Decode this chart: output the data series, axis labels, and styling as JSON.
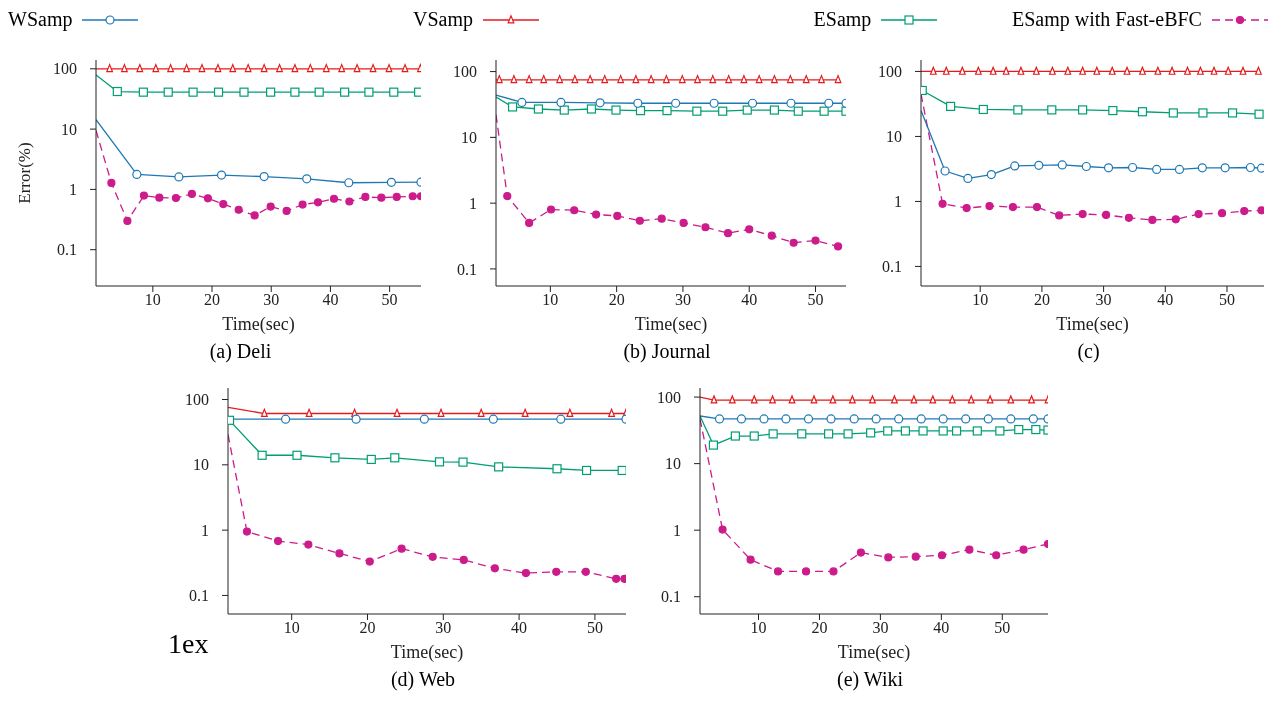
{
  "chart_data": [
    {
      "type": "line",
      "title": "(a) Deli",
      "xlabel": "Time(sec)",
      "ylabel": "Error(%)",
      "log": true,
      "legend": "top",
      "xlim": [
        0.4,
        55.3
      ],
      "xticks": [
        10,
        20,
        30,
        40,
        50
      ],
      "ylim": [
        0.025,
        140
      ],
      "yticks": [
        0.1,
        1,
        10,
        100
      ],
      "series": [
        {
          "name": "WSamp",
          "color": "#1f78b4",
          "marker": "circle",
          "line_style": "solid",
          "x": [
            0.4,
            7.3,
            14.4,
            21.6,
            28.8,
            36.0,
            43.1,
            50.3,
            55.3
          ],
          "values": [
            14.4,
            1.77,
            1.61,
            1.73,
            1.63,
            1.5,
            1.29,
            1.31,
            1.32
          ]
        },
        {
          "name": "VSamp",
          "color": "#e41a1c",
          "marker": "triangle",
          "line_style": "solid",
          "x": [
            0.4,
            2.7,
            5.2,
            7.8,
            10.5,
            13.0,
            15.7,
            18.3,
            21.0,
            23.5,
            26.1,
            28.8,
            31.4,
            34.0,
            36.6,
            39.3,
            41.9,
            44.5,
            47.2,
            49.9,
            52.6,
            55.2
          ],
          "values": [
            100,
            100,
            100,
            100,
            100,
            100,
            100,
            100,
            100,
            100,
            100,
            100,
            100,
            100,
            100,
            100,
            100,
            100,
            100,
            100,
            100,
            100
          ]
        },
        {
          "name": "ESamp",
          "color": "#009e73",
          "marker": "square",
          "line_style": "solid",
          "x": [
            0.4,
            4.0,
            8.4,
            12.6,
            16.8,
            21.1,
            25.4,
            29.9,
            34.0,
            38.1,
            42.4,
            46.5,
            50.7,
            54.9
          ],
          "values": [
            79,
            42,
            41,
            41,
            41,
            41,
            41,
            41,
            41,
            41,
            41,
            41,
            41,
            41
          ]
        },
        {
          "name": "ESamp with Fast-eBFC",
          "color": "#cc1b8b",
          "marker": "circle",
          "line_style": "dashed",
          "x": [
            0.4,
            3.0,
            5.7,
            8.5,
            11.1,
            13.9,
            16.6,
            19.3,
            21.9,
            24.5,
            27.2,
            29.9,
            32.6,
            35.3,
            37.9,
            40.6,
            43.2,
            45.9,
            48.6,
            51.2,
            53.9,
            55.3
          ],
          "values": [
            9.5,
            1.28,
            0.3,
            0.79,
            0.73,
            0.72,
            0.84,
            0.71,
            0.57,
            0.46,
            0.37,
            0.52,
            0.44,
            0.56,
            0.61,
            0.7,
            0.63,
            0.75,
            0.73,
            0.75,
            0.77,
            0.77
          ]
        }
      ]
    },
    {
      "type": "line",
      "title": "(b) Journal",
      "xlabel": "Time(sec)",
      "log": true,
      "xlim": [
        1.8,
        54.6
      ],
      "xticks": [
        10,
        20,
        30,
        40,
        50
      ],
      "ylim": [
        0.055,
        150
      ],
      "yticks": [
        0.1,
        1,
        10,
        100
      ],
      "series": [
        {
          "color": "#1f78b4",
          "marker": "circle",
          "line_style": "solid",
          "x": [
            1.8,
            5.7,
            11.6,
            17.5,
            23.2,
            28.9,
            34.7,
            40.5,
            46.3,
            52.0,
            54.6
          ],
          "values": [
            44,
            34,
            34,
            33.5,
            33,
            33,
            33,
            33,
            33,
            33,
            33
          ]
        },
        {
          "color": "#e41a1c",
          "marker": "triangle",
          "line_style": "solid",
          "x": [
            1.8,
            2.3,
            4.5,
            6.8,
            9.0,
            11.4,
            13.7,
            16.0,
            18.2,
            20.6,
            22.9,
            25.2,
            27.5,
            29.9,
            32.2,
            34.5,
            36.9,
            39.2,
            41.5,
            43.8,
            46.2,
            48.6,
            50.9,
            53.4
          ],
          "values": [
            75,
            75,
            75,
            75,
            75,
            75,
            75,
            75,
            75,
            75,
            75,
            75,
            75,
            75,
            75,
            75,
            75,
            75,
            75,
            75,
            75,
            75,
            75,
            75
          ]
        },
        {
          "color": "#009e73",
          "marker": "square",
          "line_style": "solid",
          "x": [
            1.8,
            4.3,
            8.2,
            12.1,
            16.2,
            19.9,
            23.6,
            27.6,
            32.1,
            36.0,
            39.7,
            43.8,
            47.4,
            51.3,
            54.6
          ],
          "values": [
            41,
            29,
            27,
            26,
            27,
            26,
            25.5,
            25.5,
            25,
            25,
            26,
            26,
            25,
            25,
            25
          ]
        },
        {
          "color": "#cc1b8b",
          "marker": "circle",
          "line_style": "dashed",
          "x": [
            1.8,
            3.5,
            6.8,
            10.1,
            13.6,
            16.9,
            20.1,
            23.5,
            26.8,
            30.1,
            33.4,
            36.8,
            40.0,
            43.4,
            46.7,
            50.0,
            53.4
          ],
          "values": [
            22,
            1.28,
            0.5,
            0.8,
            0.78,
            0.67,
            0.64,
            0.54,
            0.58,
            0.5,
            0.43,
            0.35,
            0.4,
            0.32,
            0.25,
            0.27,
            0.22
          ]
        }
      ]
    },
    {
      "type": "line",
      "title": "(c)",
      "xlabel": "Time(sec)",
      "log": true,
      "xlim": [
        0.4,
        56
      ],
      "xticks": [
        10,
        20,
        30,
        40,
        50
      ],
      "ylim": [
        0.05,
        150
      ],
      "yticks": [
        0.1,
        1,
        10,
        100
      ],
      "series": [
        {
          "color": "#1f78b4",
          "marker": "circle",
          "line_style": "solid",
          "x": [
            0.4,
            4.3,
            8.0,
            11.8,
            15.6,
            19.5,
            23.3,
            27.2,
            30.8,
            34.7,
            38.6,
            42.3,
            46.0,
            49.7,
            53.8,
            55.6
          ],
          "values": [
            25,
            2.94,
            2.26,
            2.59,
            3.52,
            3.6,
            3.65,
            3.45,
            3.29,
            3.33,
            3.11,
            3.11,
            3.29,
            3.29,
            3.33,
            3.25
          ]
        },
        {
          "color": "#e41a1c",
          "marker": "triangle",
          "line_style": "solid",
          "x": [
            0.4,
            2.4,
            4.5,
            7.1,
            9.7,
            12.1,
            14.2,
            16.6,
            19.1,
            21.7,
            24.2,
            26.6,
            28.9,
            31.4,
            33.8,
            36.3,
            38.8,
            41.1,
            43.6,
            45.7,
            47.9,
            50.2,
            52.6,
            55.1
          ],
          "values": [
            100,
            100,
            100,
            100,
            100,
            100,
            100,
            100,
            100,
            100,
            100,
            100,
            100,
            100,
            100,
            100,
            100,
            100,
            100,
            100,
            100,
            100,
            100,
            100
          ]
        },
        {
          "color": "#009e73",
          "marker": "square",
          "line_style": "solid",
          "x": [
            0.6,
            5.2,
            10.5,
            16.1,
            21.6,
            26.6,
            31.5,
            36.3,
            41.3,
            46.1,
            50.9,
            55.2
          ],
          "values": [
            51,
            29,
            26,
            25.6,
            25.6,
            25.6,
            25,
            24,
            23,
            23,
            23,
            22
          ]
        },
        {
          "color": "#cc1b8b",
          "marker": "circle",
          "line_style": "dashed",
          "x": [
            0.4,
            3.9,
            7.8,
            11.5,
            15.3,
            19.2,
            22.8,
            26.6,
            30.4,
            34.1,
            37.9,
            41.7,
            45.4,
            49.2,
            52.8,
            55.6
          ],
          "values": [
            45,
            0.92,
            0.79,
            0.85,
            0.82,
            0.82,
            0.61,
            0.64,
            0.62,
            0.56,
            0.52,
            0.53,
            0.64,
            0.66,
            0.71,
            0.73
          ]
        }
      ]
    },
    {
      "type": "line",
      "title": "(d) Web",
      "xlabel": "Time(sec)",
      "annotations": [
        "1ex"
      ],
      "log": true,
      "xlim": [
        1.6,
        54.1
      ],
      "xticks": [
        10,
        20,
        30,
        40,
        50
      ],
      "ylim": [
        0.052,
        150
      ],
      "yticks": [
        0.1,
        1,
        10,
        100
      ],
      "series": [
        {
          "color": "#1f78b4",
          "marker": "circle",
          "line_style": "solid",
          "x": [
            1.6,
            9.2,
            18.5,
            27.5,
            36.6,
            45.5,
            54.1
          ],
          "values": [
            50,
            50,
            50,
            50,
            50,
            50,
            50
          ]
        },
        {
          "color": "#e41a1c",
          "marker": "triangle",
          "line_style": "solid",
          "x": [
            1.6,
            6.4,
            12.3,
            18.3,
            23.9,
            29.7,
            35.0,
            40.8,
            46.7,
            52.2,
            54.1
          ],
          "values": [
            76,
            61,
            61,
            61,
            61,
            61,
            61,
            61,
            61,
            61,
            61
          ]
        },
        {
          "color": "#009e73",
          "marker": "square",
          "line_style": "solid",
          "x": [
            1.8,
            6.1,
            10.7,
            15.7,
            20.5,
            23.6,
            29.5,
            32.6,
            37.3,
            45.0,
            48.9,
            53.6
          ],
          "values": [
            48,
            14,
            14,
            12.8,
            12.1,
            12.8,
            11.1,
            11,
            9.3,
            8.7,
            8.2,
            8.2
          ]
        },
        {
          "color": "#cc1b8b",
          "marker": "circle",
          "line_style": "dashed",
          "x": [
            1.6,
            4.1,
            8.2,
            12.2,
            16.3,
            20.3,
            24.5,
            28.6,
            32.7,
            36.8,
            40.9,
            44.9,
            48.8,
            52.8,
            53.9
          ],
          "values": [
            29,
            0.95,
            0.68,
            0.6,
            0.44,
            0.33,
            0.52,
            0.39,
            0.35,
            0.26,
            0.22,
            0.23,
            0.23,
            0.18,
            0.18
          ]
        }
      ]
    },
    {
      "type": "line",
      "title": "(e) Wiki",
      "xlabel": "Time(sec)",
      "log": true,
      "xlim": [
        0.4,
        57.5
      ],
      "xticks": [
        10,
        20,
        30,
        40,
        50
      ],
      "ylim": [
        0.055,
        137
      ],
      "yticks": [
        0.1,
        1,
        10,
        100
      ],
      "series": [
        {
          "color": "#1f78b4",
          "marker": "circle",
          "line_style": "solid",
          "x": [
            0.4,
            3.6,
            7.2,
            10.9,
            14.5,
            18.2,
            21.9,
            25.7,
            29.3,
            33.0,
            36.7,
            40.3,
            44.0,
            47.7,
            51.4,
            55.1,
            57.5
          ],
          "values": [
            52,
            47,
            47,
            47,
            47,
            47,
            47,
            47,
            47,
            47,
            47,
            47,
            47,
            47,
            47,
            47,
            47
          ]
        },
        {
          "color": "#e41a1c",
          "marker": "triangle",
          "line_style": "solid",
          "x": [
            0.4,
            2.7,
            5.7,
            9.3,
            12.3,
            15.5,
            19.1,
            22.2,
            25.4,
            28.7,
            32.3,
            35.5,
            38.6,
            41.8,
            44.9,
            48.0,
            51.4,
            54.8,
            57.5
          ],
          "values": [
            100,
            90,
            90,
            90,
            90,
            90,
            90,
            90,
            90,
            90,
            90,
            90,
            90,
            90,
            90,
            90,
            90,
            90,
            90
          ]
        },
        {
          "color": "#009e73",
          "marker": "square",
          "line_style": "solid",
          "x": [
            0.4,
            2.6,
            6.2,
            9.3,
            12.4,
            17.1,
            21.5,
            24.7,
            28.4,
            31.2,
            34.1,
            37.0,
            40.3,
            42.5,
            45.9,
            49.6,
            52.7,
            55.5,
            57.5
          ],
          "values": [
            52,
            19,
            26,
            26,
            28,
            28,
            28,
            28,
            29,
            31,
            31,
            31,
            31,
            31,
            31,
            31,
            32.5,
            32.5,
            32
          ]
        },
        {
          "color": "#cc1b8b",
          "marker": "circle",
          "line_style": "dashed",
          "x": [
            0.4,
            4.1,
            8.7,
            13.2,
            17.8,
            22.3,
            26.8,
            31.3,
            35.8,
            40.1,
            44.6,
            49.0,
            53.5,
            57.5
          ],
          "values": [
            47,
            1.02,
            0.36,
            0.24,
            0.24,
            0.24,
            0.46,
            0.39,
            0.4,
            0.42,
            0.51,
            0.42,
            0.51,
            0.62
          ]
        }
      ]
    }
  ]
}
